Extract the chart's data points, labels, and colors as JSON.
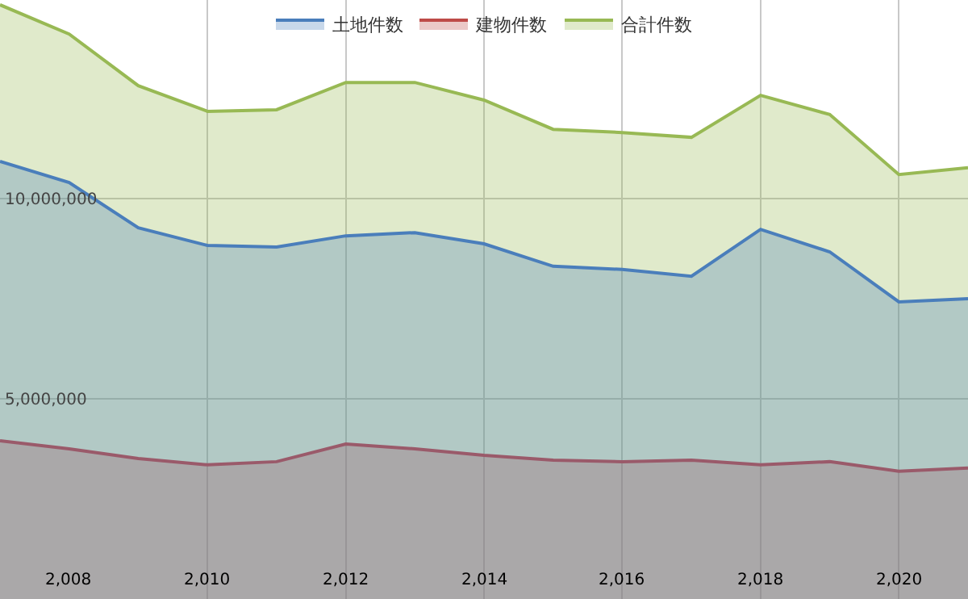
{
  "chart_data": {
    "type": "area",
    "x": [
      2007,
      2008,
      2009,
      2010,
      2011,
      2012,
      2013,
      2014,
      2015,
      2016,
      2017,
      2018,
      2019,
      2020,
      2021
    ],
    "series": [
      {
        "name": "土地件数",
        "color": "#4a7ebb",
        "values": [
          10930000,
          10400000,
          9270000,
          8830000,
          8790000,
          9070000,
          9150000,
          8870000,
          8310000,
          8230000,
          8060000,
          9230000,
          8670000,
          7420000,
          7500000
        ]
      },
      {
        "name": "建物件数",
        "color": "#be4b48",
        "values": [
          3950000,
          3750000,
          3510000,
          3350000,
          3430000,
          3870000,
          3750000,
          3590000,
          3470000,
          3430000,
          3470000,
          3350000,
          3430000,
          3190000,
          3270000
        ]
      },
      {
        "name": "合計件数",
        "color": "#98b954",
        "values": [
          14840000,
          14110000,
          12820000,
          12180000,
          12220000,
          12900000,
          12900000,
          12460000,
          11730000,
          11650000,
          11530000,
          12580000,
          12100000,
          10600000,
          10770000
        ]
      }
    ],
    "xlim": [
      2007,
      2021
    ],
    "xticks": [
      {
        "value": 2008,
        "label": "2,008"
      },
      {
        "value": 2010,
        "label": "2,010"
      },
      {
        "value": 2012,
        "label": "2,012"
      },
      {
        "value": 2014,
        "label": "2,014"
      },
      {
        "value": 2016,
        "label": "2,016"
      },
      {
        "value": 2018,
        "label": "2,018"
      },
      {
        "value": 2020,
        "label": "2,020"
      }
    ],
    "ylim": [
      0,
      14960000
    ],
    "yticks": [
      {
        "value": 5000000,
        "label": "5,000,000"
      },
      {
        "value": 10000000,
        "label": "10,000,000"
      }
    ],
    "grid": true,
    "legend": "top",
    "marker": "none",
    "line_style": "solid"
  }
}
